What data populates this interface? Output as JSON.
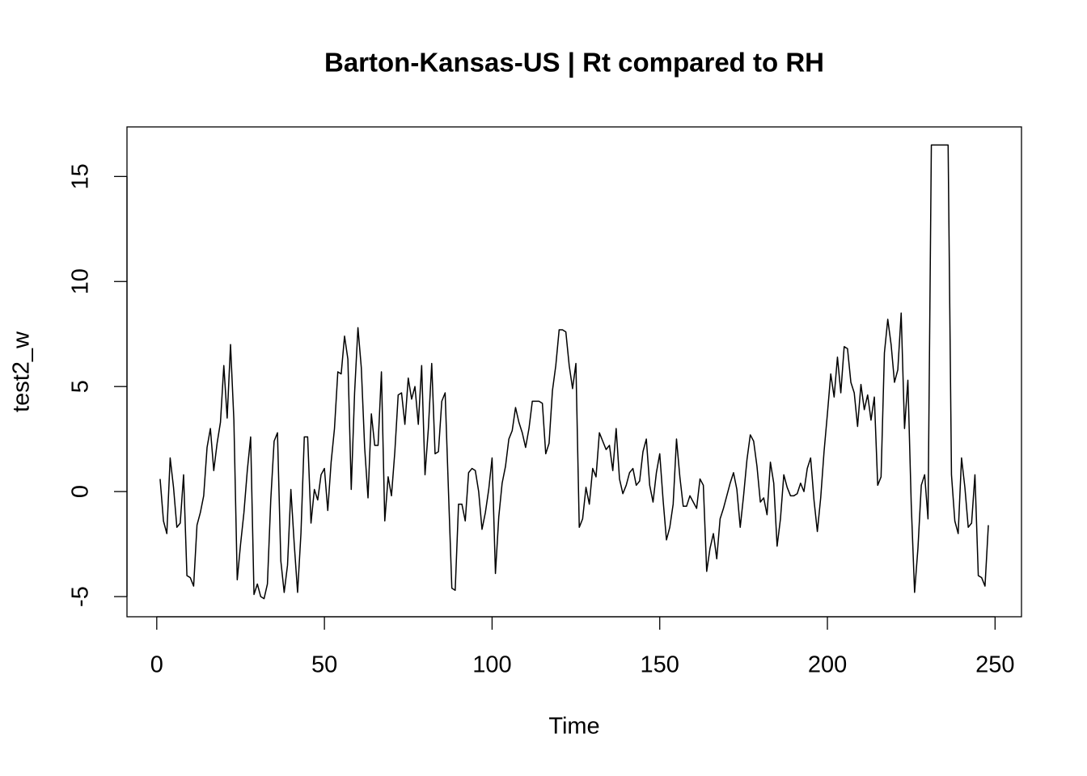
{
  "chart_data": {
    "type": "line",
    "title": "Barton-Kansas-US | Rt compared to RH",
    "x_label": "Time",
    "y_label": "test2_w",
    "color": "#000000",
    "x": [
      1,
      2,
      3,
      4,
      5,
      6,
      7,
      8,
      9,
      10,
      11,
      12,
      13,
      14,
      15,
      16,
      17,
      18,
      19,
      20,
      21,
      22,
      23,
      24,
      25,
      26,
      27,
      28,
      29,
      30,
      31,
      32,
      33,
      34,
      35,
      36,
      37,
      38,
      39,
      40,
      41,
      42,
      43,
      44,
      45,
      46,
      47,
      48,
      49,
      50,
      51,
      52,
      53,
      54,
      55,
      56,
      57,
      58,
      59,
      60,
      61,
      62,
      63,
      64,
      65,
      66,
      67,
      68,
      69,
      70,
      71,
      72,
      73,
      74,
      75,
      76,
      77,
      78,
      79,
      80,
      81,
      82,
      83,
      84,
      85,
      86,
      87,
      88,
      89,
      90,
      91,
      92,
      93,
      94,
      95,
      96,
      97,
      98,
      99,
      100,
      101,
      102,
      103,
      104,
      105,
      106,
      107,
      108,
      109,
      110,
      111,
      112,
      113,
      114,
      115,
      116,
      117,
      118,
      119,
      120,
      121,
      122,
      123,
      124,
      125,
      126,
      127,
      128,
      129,
      130,
      131,
      132,
      133,
      134,
      135,
      136,
      137,
      138,
      139,
      140,
      141,
      142,
      143,
      144,
      145,
      146,
      147,
      148,
      149,
      150,
      151,
      152,
      153,
      154,
      155,
      156,
      157,
      158,
      159,
      160,
      161,
      162,
      163,
      164,
      165,
      166,
      167,
      168,
      169,
      170,
      171,
      172,
      173,
      174,
      175,
      176,
      177,
      178,
      179,
      180,
      181,
      182,
      183,
      184,
      185,
      186,
      187,
      188,
      189,
      190,
      191,
      192,
      193,
      194,
      195,
      196,
      197,
      198,
      199,
      200,
      201,
      202,
      203,
      204,
      205,
      206,
      207,
      208,
      209,
      210,
      211,
      212,
      213,
      214,
      215,
      216,
      217,
      218,
      219,
      220,
      221,
      222,
      223,
      224,
      225,
      226,
      227,
      228,
      229,
      230,
      231,
      232,
      233,
      234,
      235,
      236,
      237,
      238,
      239,
      240,
      241,
      242,
      243,
      244,
      245,
      246,
      247,
      248
    ],
    "values": [
      0.6,
      -1.4,
      -2.0,
      1.6,
      0.2,
      -1.7,
      -1.5,
      0.8,
      -4.0,
      -4.1,
      -4.5,
      -1.6,
      -1.0,
      -0.2,
      2.1,
      3.0,
      1.0,
      2.3,
      3.3,
      6.0,
      3.5,
      7.0,
      3.4,
      -4.2,
      -2.5,
      -1.0,
      1.0,
      2.6,
      -4.9,
      -4.4,
      -5.0,
      -5.1,
      -4.4,
      -0.4,
      2.4,
      2.8,
      -3.3,
      -4.8,
      -3.5,
      0.1,
      -2.5,
      -4.8,
      -2.0,
      2.6,
      2.6,
      -1.5,
      0.1,
      -0.4,
      0.8,
      1.1,
      -0.9,
      1.4,
      3.0,
      5.7,
      5.6,
      7.4,
      6.3,
      0.1,
      4.7,
      7.8,
      5.9,
      2.1,
      -0.3,
      3.7,
      2.2,
      2.2,
      5.7,
      -1.4,
      0.7,
      -0.2,
      1.9,
      4.6,
      4.7,
      3.2,
      5.4,
      4.4,
      5.0,
      3.2,
      6.0,
      0.8,
      3.0,
      6.1,
      1.8,
      1.9,
      4.3,
      4.7,
      0.0,
      -4.6,
      -4.7,
      -0.6,
      -0.6,
      -1.4,
      0.9,
      1.1,
      1.0,
      0.0,
      -1.8,
      -1.0,
      0.1,
      1.6,
      -3.9,
      -1.2,
      0.4,
      1.2,
      2.5,
      2.9,
      4.0,
      3.3,
      2.8,
      2.1,
      3.0,
      4.3,
      4.3,
      4.3,
      4.2,
      1.8,
      2.3,
      4.8,
      6.0,
      7.7,
      7.7,
      7.6,
      6.0,
      4.9,
      6.1,
      -1.7,
      -1.3,
      0.2,
      -0.6,
      1.1,
      0.7,
      2.8,
      2.4,
      2.0,
      2.2,
      1.0,
      3.0,
      0.6,
      -0.1,
      0.3,
      0.9,
      1.1,
      0.3,
      0.5,
      1.9,
      2.5,
      0.3,
      -0.5,
      0.9,
      1.8,
      -0.4,
      -2.3,
      -1.7,
      -0.6,
      2.5,
      0.7,
      -0.7,
      -0.7,
      -0.2,
      -0.5,
      -0.8,
      0.6,
      0.3,
      -3.8,
      -2.7,
      -2.0,
      -3.2,
      -1.3,
      -0.8,
      -0.2,
      0.4,
      0.9,
      0.1,
      -1.7,
      -0.2,
      1.5,
      2.7,
      2.4,
      1.2,
      -0.5,
      -0.3,
      -1.1,
      1.4,
      0.4,
      -2.6,
      -1.3,
      0.8,
      0.2,
      -0.2,
      -0.2,
      -0.1,
      0.4,
      0.0,
      1.1,
      1.6,
      -0.4,
      -1.9,
      -0.3,
      1.9,
      3.7,
      5.6,
      4.5,
      6.4,
      4.7,
      6.9,
      6.8,
      5.2,
      4.7,
      3.1,
      5.1,
      3.9,
      4.6,
      3.4,
      4.5,
      0.3,
      0.7,
      6.6,
      8.2,
      7.0,
      5.2,
      5.8,
      8.5,
      3.0,
      5.3,
      -0.6,
      -4.8,
      -2.7,
      0.3,
      0.8,
      -1.3,
      16.5,
      16.5,
      16.5,
      16.5,
      16.5,
      16.5,
      0.8,
      -1.4,
      -2.0,
      1.6,
      0.2,
      -1.7,
      -1.5,
      0.8,
      -4.0,
      -4.1,
      -4.5,
      -1.6
    ],
    "xlim": [
      -8.88,
      257.88
    ],
    "xticks": [
      0,
      50,
      100,
      150,
      200,
      250
    ],
    "ylim": [
      -5.96,
      17.36
    ],
    "yticks": [
      -5,
      0,
      5,
      10,
      15
    ],
    "grid": false
  }
}
